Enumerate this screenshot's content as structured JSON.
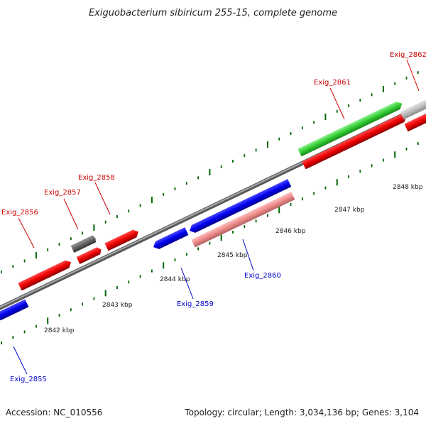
{
  "title": "Exiguobacterium sibiricum 255-15, complete genome",
  "footer": {
    "accession": "Accession: NC_010556",
    "summary": "Topology: circular; Length: 3,034,136 bp; Genes: 3,104"
  },
  "colors": {
    "forward_label": "#cc0000",
    "reverse_label": "#0000cc",
    "tick": "#006400",
    "backbone": "#8a8a8a"
  },
  "kbp_ticks": [
    "2842 kbp",
    "2843 kbp",
    "2844 kbp",
    "2845 kbp",
    "2846 kbp",
    "2847 kbp",
    "2848 kbp"
  ],
  "genes": [
    {
      "name": "Exig_2855",
      "strand": "reverse",
      "color": "#0000ee"
    },
    {
      "name": "Exig_2856",
      "strand": "forward",
      "color": "#ee0000"
    },
    {
      "name": "Exig_2857",
      "strand": "forward",
      "color": "#ee0000"
    },
    {
      "name": "Exig_2858",
      "strand": "forward",
      "color": "#ee0000"
    },
    {
      "name": "Exig_2859",
      "strand": "reverse",
      "color": "#0000ee"
    },
    {
      "name": "Exig_2860",
      "strand": "reverse",
      "color": "#0000ee"
    },
    {
      "name": "Exig_2861",
      "strand": "forward",
      "color": "#33cc33"
    },
    {
      "name": "Exig_2862",
      "strand": "forward",
      "color": "#bbbbbb"
    }
  ]
}
